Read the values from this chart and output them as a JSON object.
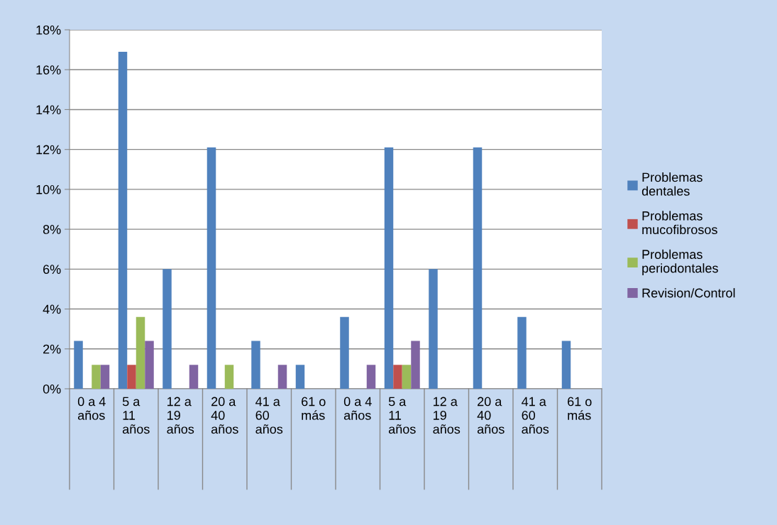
{
  "chart_data": {
    "type": "bar",
    "categories": [
      "0 a 4\naños",
      "5 a\n11\naños",
      "12 a\n19\naños",
      "20 a\n40\naños",
      "41 a\n60\naños",
      "61 o\nmás",
      "0 a 4\naños",
      "5 a\n11\naños",
      "12 a\n19\naños",
      "20 a\n40\naños",
      "41 a\n60\naños",
      "61 o\nmás"
    ],
    "series": [
      {
        "name": "Problemas\ndentales",
        "color": "#4f81bd",
        "values": [
          2.4,
          16.9,
          6.0,
          12.1,
          2.4,
          1.2,
          3.6,
          12.1,
          6.0,
          12.1,
          3.6,
          2.4
        ]
      },
      {
        "name": "Problemas\nmucofibrosos",
        "color": "#c0504d",
        "values": [
          null,
          1.2,
          null,
          null,
          null,
          null,
          null,
          1.2,
          null,
          null,
          null,
          null
        ]
      },
      {
        "name": "Problemas\nperiodontales",
        "color": "#9bbb59",
        "values": [
          1.2,
          3.6,
          null,
          1.2,
          null,
          null,
          null,
          1.2,
          null,
          null,
          null,
          null
        ]
      },
      {
        "name": "Revision/Control",
        "color": "#8064a2",
        "values": [
          1.2,
          2.4,
          1.2,
          null,
          1.2,
          null,
          1.2,
          2.4,
          null,
          null,
          null,
          null
        ]
      }
    ],
    "ylim": [
      0,
      18
    ],
    "yticks": [
      {
        "value": 0,
        "label": "0%"
      },
      {
        "value": 2,
        "label": "2%"
      },
      {
        "value": 4,
        "label": "4%"
      },
      {
        "value": 6,
        "label": "6%"
      },
      {
        "value": 8,
        "label": "8%"
      },
      {
        "value": 10,
        "label": "10%"
      },
      {
        "value": 12,
        "label": "12%"
      },
      {
        "value": 14,
        "label": "14%"
      },
      {
        "value": 16,
        "label": "16%"
      },
      {
        "value": 18,
        "label": "18%"
      }
    ],
    "grid": "y",
    "legend": "right"
  }
}
